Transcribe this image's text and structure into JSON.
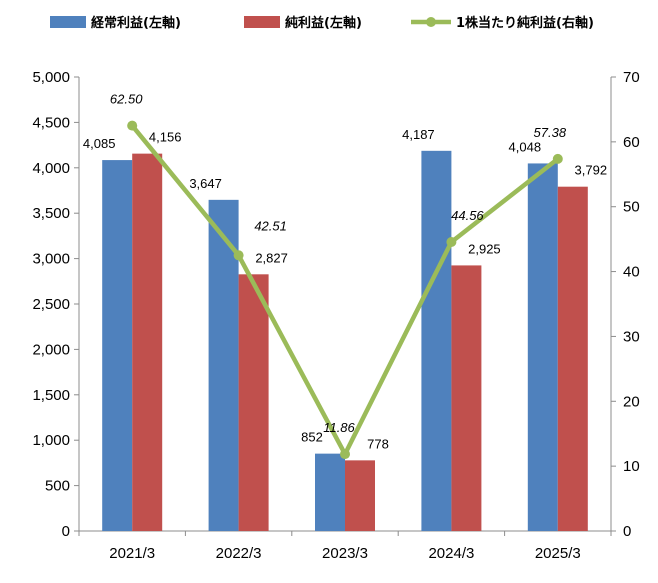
{
  "chart_data": {
    "type": "bar",
    "categories": [
      "2021/3",
      "2022/3",
      "2023/3",
      "2024/3",
      "2025/3"
    ],
    "series": [
      {
        "name": "経常利益(左軸)",
        "type": "bar",
        "axis": "left",
        "color": "#4F81BD",
        "values": [
          4085,
          3647,
          852,
          4187,
          4048
        ],
        "labels": [
          "4,085",
          "3,647",
          "852",
          "4,187",
          "4,048"
        ]
      },
      {
        "name": "純利益(左軸)",
        "type": "bar",
        "axis": "left",
        "color": "#C0504D",
        "values": [
          4156,
          2827,
          778,
          2925,
          3792
        ],
        "labels": [
          "4,156",
          "2,827",
          "778",
          "2,925",
          "3,792"
        ]
      },
      {
        "name": "1株当たり純利益(右軸)",
        "type": "line",
        "axis": "right",
        "color": "#9BBB59",
        "values": [
          62.5,
          42.51,
          11.86,
          44.56,
          57.38
        ],
        "labels": [
          "62.50",
          "42.51",
          "11.86",
          "44.56",
          "57.38"
        ]
      }
    ],
    "y_left": {
      "min": 0,
      "max": 5000,
      "ticks": [
        "0",
        "500",
        "1,000",
        "1,500",
        "2,000",
        "2,500",
        "3,000",
        "3,500",
        "4,000",
        "4,500",
        "5,000"
      ]
    },
    "y_right": {
      "min": 0,
      "max": 70,
      "ticks": [
        "0",
        "10",
        "20",
        "30",
        "40",
        "50",
        "60",
        "70"
      ]
    },
    "grid": false,
    "legend": "top"
  }
}
